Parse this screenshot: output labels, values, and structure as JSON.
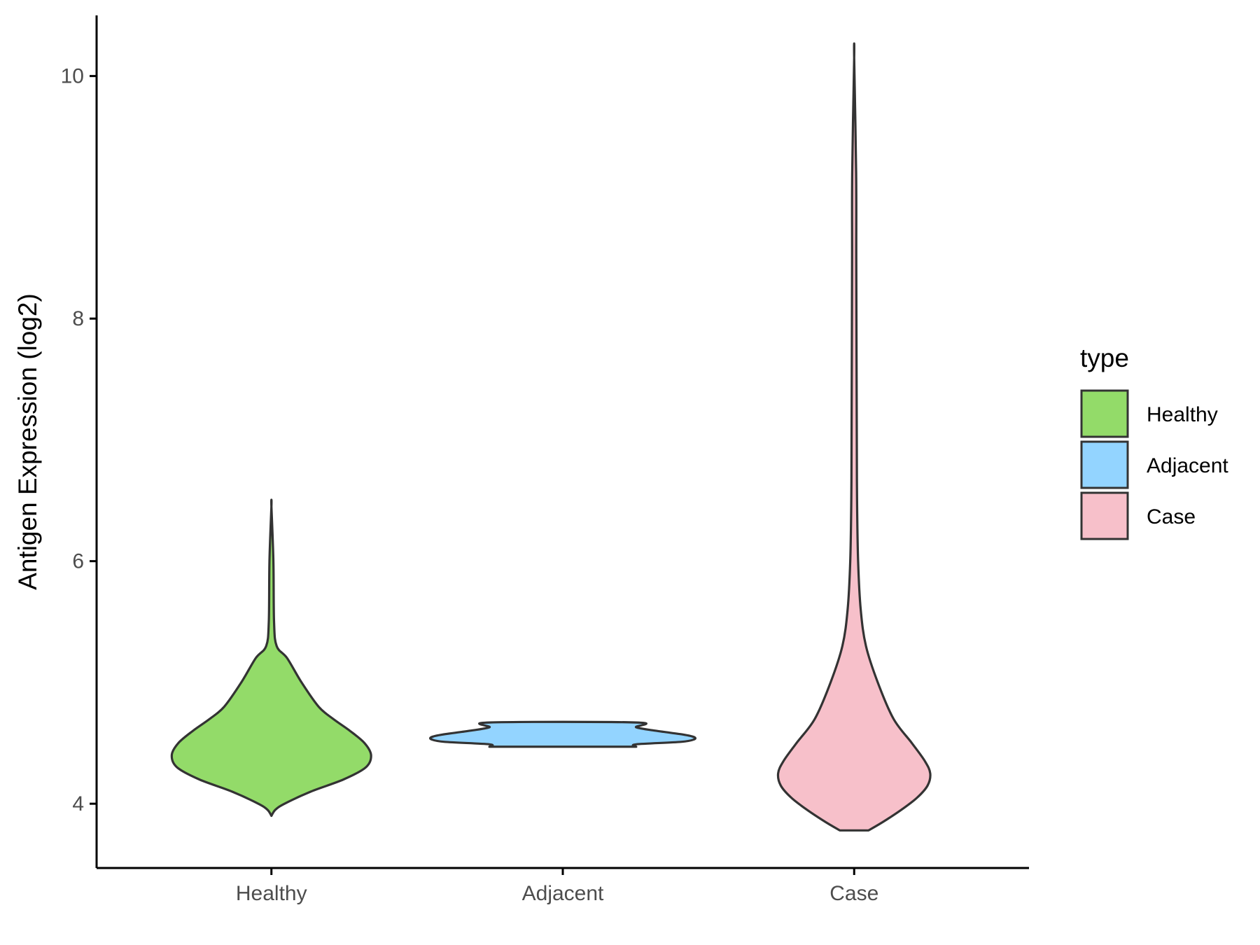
{
  "chart_data": {
    "type": "violin",
    "title": "",
    "xlabel": "",
    "ylabel": "Antigen Expression (log2)",
    "ylim": [
      3.47,
      10.5
    ],
    "y_ticks": [
      4,
      6,
      8,
      10
    ],
    "categories": [
      "Healthy",
      "Adjacent",
      "Case"
    ],
    "legend": {
      "title": "type",
      "position": "right",
      "entries": [
        "Healthy",
        "Adjacent",
        "Case"
      ]
    },
    "grid": false,
    "series": [
      {
        "name": "Healthy",
        "color": "#93db69",
        "y_min": 3.9,
        "y_max": 6.45,
        "density_profile": [
          [
            3.9,
            0.0
          ],
          [
            3.95,
            0.03
          ],
          [
            4.0,
            0.1
          ],
          [
            4.1,
            0.3
          ],
          [
            4.2,
            0.55
          ],
          [
            4.3,
            0.72
          ],
          [
            4.4,
            0.76
          ],
          [
            4.5,
            0.71
          ],
          [
            4.6,
            0.6
          ],
          [
            4.7,
            0.47
          ],
          [
            4.8,
            0.36
          ],
          [
            5.0,
            0.23
          ],
          [
            5.2,
            0.12
          ],
          [
            5.3,
            0.04
          ],
          [
            5.5,
            0.02
          ],
          [
            6.0,
            0.015
          ],
          [
            6.45,
            0.0
          ]
        ]
      },
      {
        "name": "Adjacent",
        "color": "#93d4ff",
        "y_min": 4.47,
        "y_max": 4.67,
        "density_profile": [
          [
            4.47,
            0.56
          ],
          [
            4.49,
            0.56
          ],
          [
            4.51,
            0.9
          ],
          [
            4.53,
            1.0
          ],
          [
            4.55,
            1.0
          ],
          [
            4.57,
            0.92
          ],
          [
            4.6,
            0.72
          ],
          [
            4.63,
            0.56
          ],
          [
            4.67,
            0.56
          ]
        ]
      },
      {
        "name": "Case",
        "color": "#f7c0ca",
        "y_min": 3.78,
        "y_max": 10.15,
        "density_profile": [
          [
            3.78,
            0.11
          ],
          [
            3.85,
            0.22
          ],
          [
            3.95,
            0.36
          ],
          [
            4.05,
            0.48
          ],
          [
            4.15,
            0.56
          ],
          [
            4.25,
            0.58
          ],
          [
            4.35,
            0.54
          ],
          [
            4.5,
            0.44
          ],
          [
            4.7,
            0.3
          ],
          [
            5.0,
            0.18
          ],
          [
            5.3,
            0.09
          ],
          [
            5.6,
            0.05
          ],
          [
            6.0,
            0.03
          ],
          [
            6.5,
            0.022
          ],
          [
            7.0,
            0.02
          ],
          [
            7.7,
            0.018
          ],
          [
            8.5,
            0.016
          ],
          [
            9.2,
            0.015
          ],
          [
            10.15,
            0.0
          ]
        ]
      }
    ]
  }
}
